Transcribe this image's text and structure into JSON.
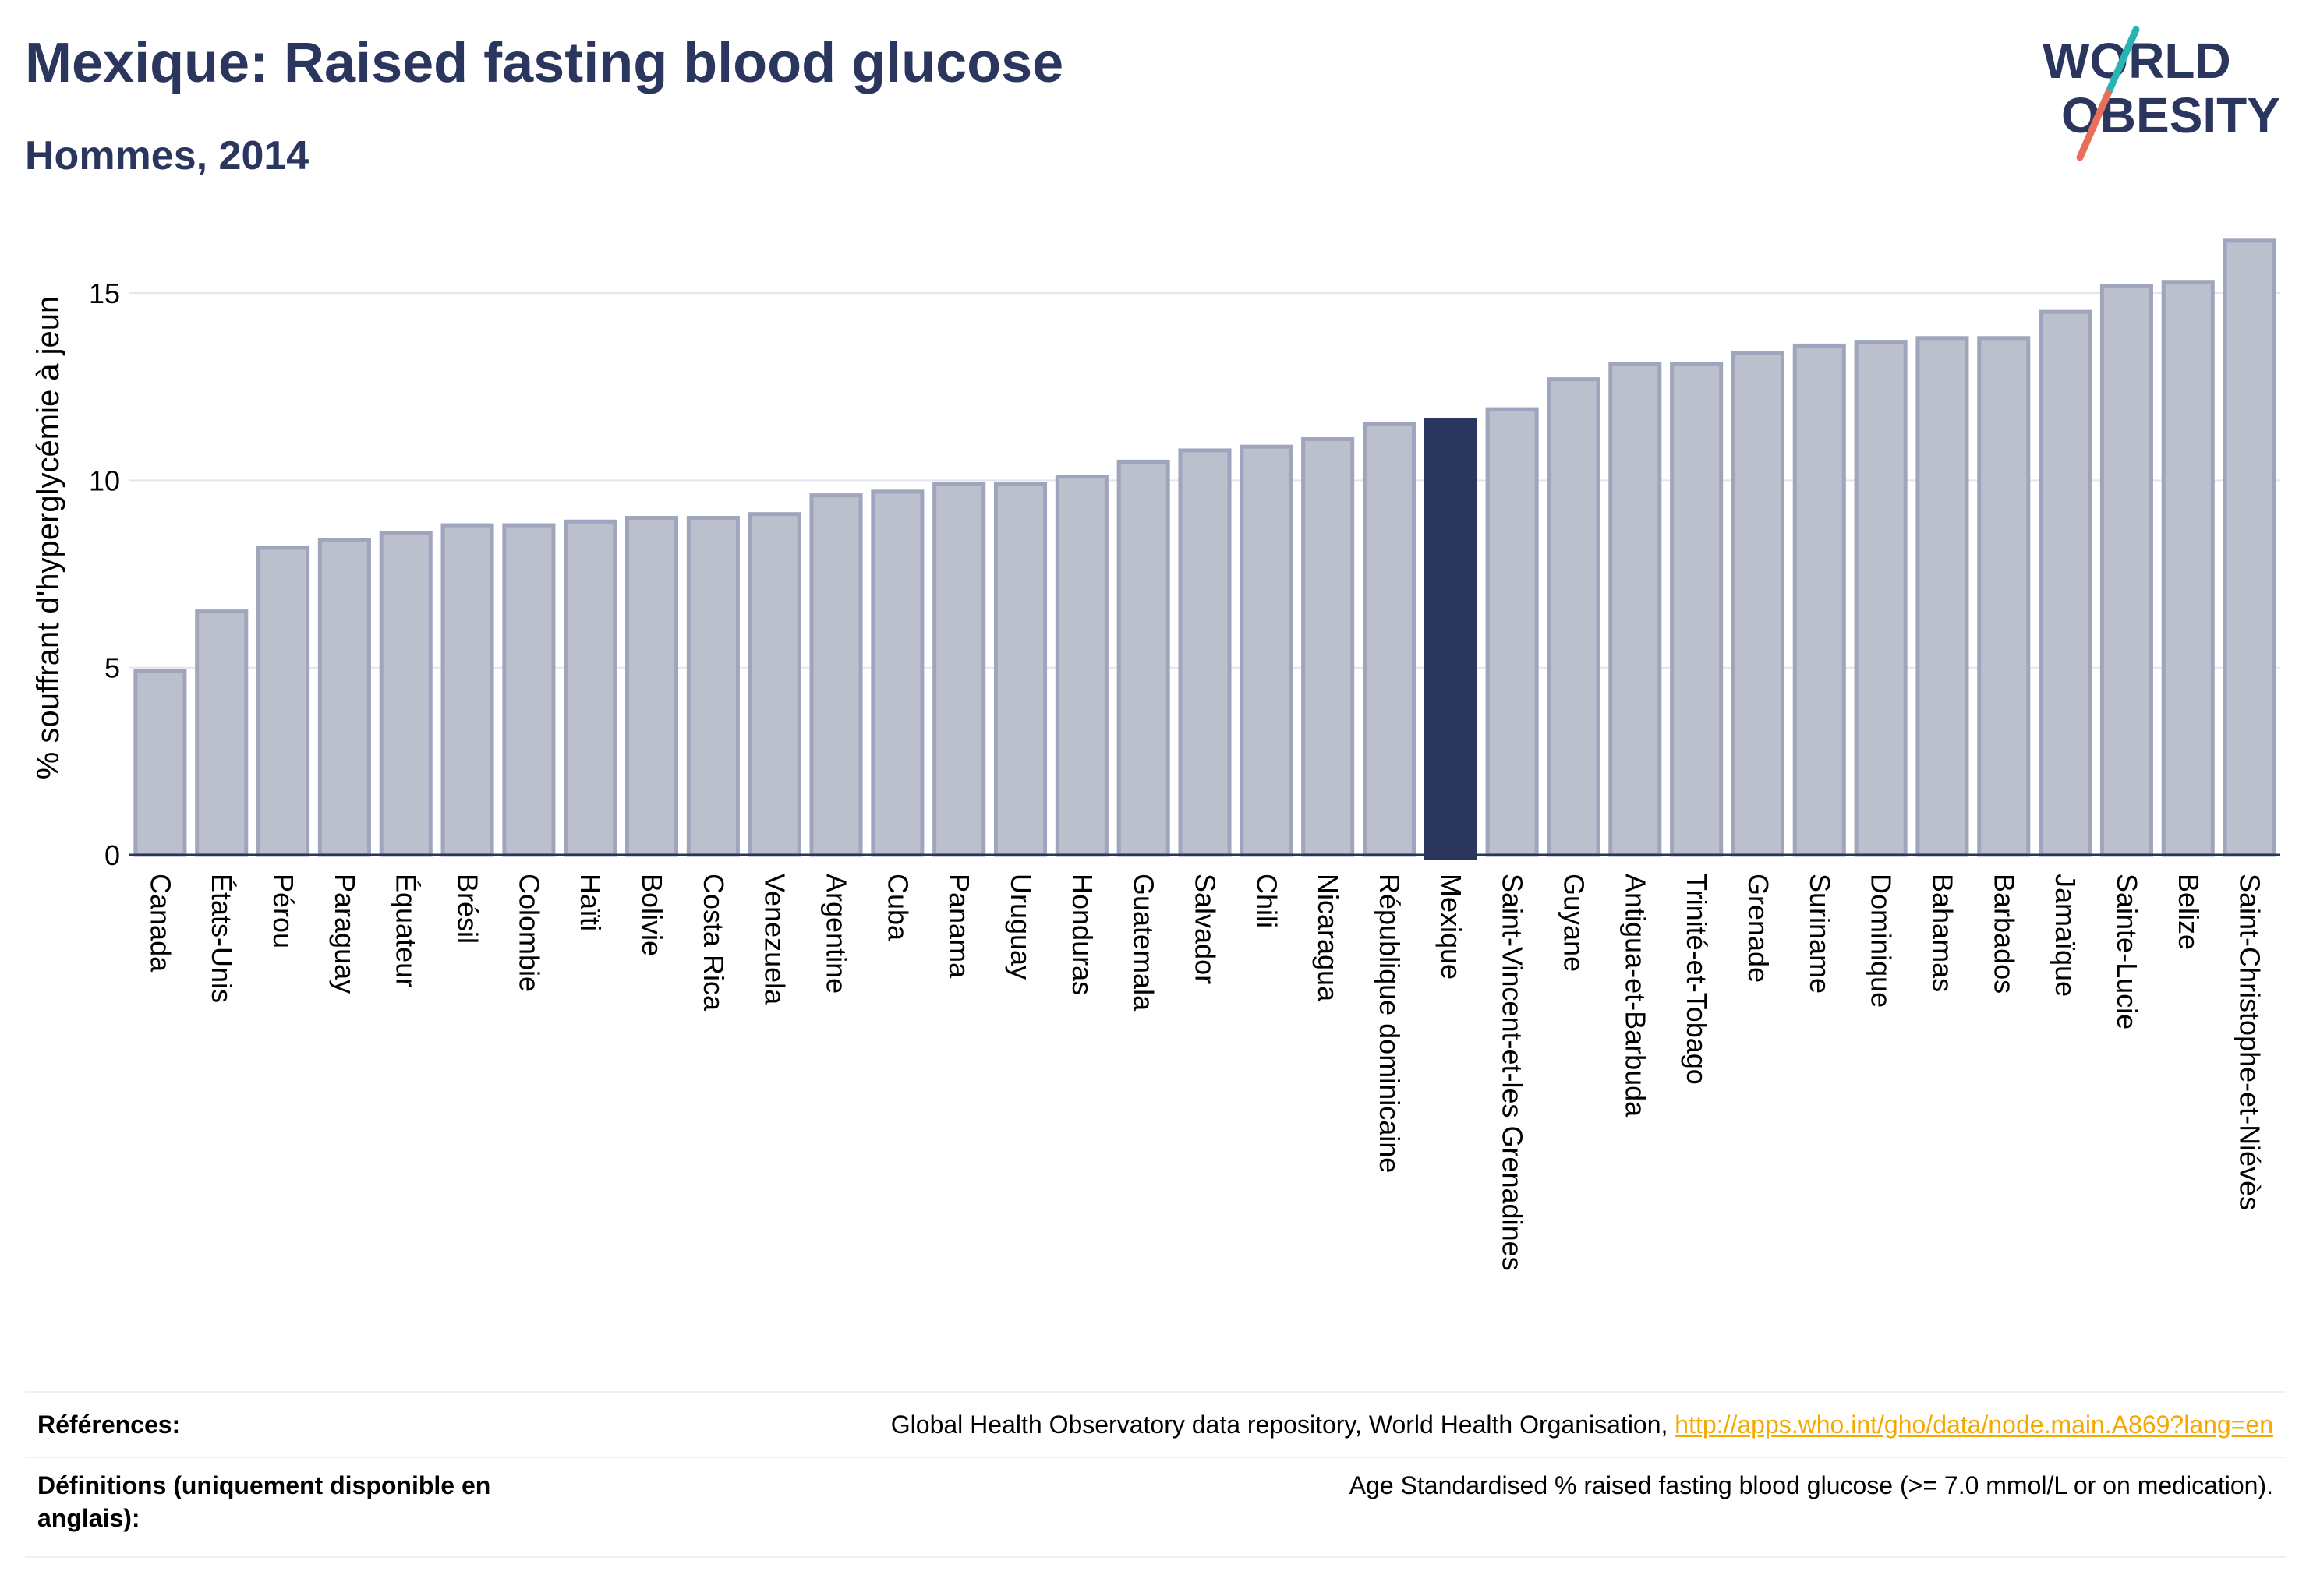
{
  "header": {
    "title": "Mexique: Raised fasting blood glucose",
    "subtitle": "Hommes, 2014"
  },
  "logo": {
    "line1": "WORLD",
    "line2": "OBESITY",
    "text_color": "#2b365f",
    "slash_top_color": "#2ab3b3",
    "slash_bottom_color": "#e8705a"
  },
  "chart_data": {
    "type": "bar",
    "ylabel": "% souffrant d'hyperglycémie à jeun",
    "xlabel": "",
    "ylim": [
      0,
      17
    ],
    "yticks": [
      0,
      5,
      10,
      15
    ],
    "grid": true,
    "highlight": "Mexique",
    "colors": {
      "bar": "#bcc0cd",
      "bar_border": "#9ea5bc",
      "highlight": "#2b365f",
      "grid": "#e3e5ec",
      "axis": "#2b365f"
    },
    "categories": [
      "Canada",
      "États-Unis",
      "Pérou",
      "Paraguay",
      "Équateur",
      "Brésil",
      "Colombie",
      "Haïti",
      "Bolivie",
      "Costa Rica",
      "Venezuela",
      "Argentine",
      "Cuba",
      "Panama",
      "Uruguay",
      "Honduras",
      "Guatemala",
      "Salvador",
      "Chili",
      "Nicaragua",
      "République dominicaine",
      "Mexique",
      "Saint-Vincent-et-les Grenadines",
      "Guyane",
      "Antigua-et-Barbuda",
      "Trinité-et-Tobago",
      "Grenade",
      "Suriname",
      "Dominique",
      "Bahamas",
      "Barbados",
      "Jamaïque",
      "Sainte-Lucie",
      "Belize",
      "Saint-Christophe-et-Niévès"
    ],
    "values": [
      4.9,
      6.5,
      8.2,
      8.4,
      8.6,
      8.8,
      8.8,
      8.9,
      9.0,
      9.0,
      9.1,
      9.6,
      9.7,
      9.9,
      9.9,
      10.1,
      10.5,
      10.8,
      10.9,
      11.1,
      11.5,
      11.6,
      11.9,
      12.7,
      13.1,
      13.1,
      13.4,
      13.6,
      13.7,
      13.8,
      13.8,
      14.5,
      15.2,
      15.3,
      16.4
    ]
  },
  "footer": {
    "references_label": "Références:",
    "references_text": "Global Health Observatory data repository, World Health Organisation, ",
    "references_link": "http://apps.who.int/gho/data/node.main.A869?lang=en",
    "definitions_label": "Définitions (uniquement disponible en anglais):",
    "definitions_text": "Age Standardised % raised fasting blood glucose (>= 7.0 mmol/L or on medication)."
  }
}
